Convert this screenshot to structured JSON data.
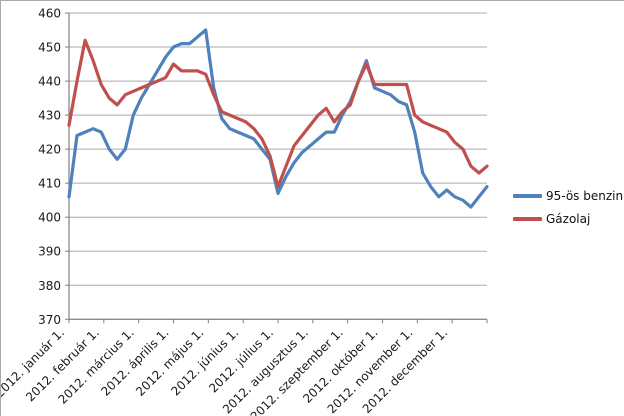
{
  "chart_data": {
    "type": "line",
    "title": "",
    "x_tick_labels": [
      "2012. január 1.",
      "2012. február 1.",
      "2012. március 1.",
      "2012. április 1.",
      "2012. május 1.",
      "2012. június 1.",
      "2012. július 1.",
      "2012. augusztus 1.",
      "2012. szeptember 1.",
      "2012. október 1.",
      "2012. november 1.",
      "2012. december 1."
    ],
    "y_tick_labels": [
      "370",
      "380",
      "390",
      "400",
      "410",
      "420",
      "430",
      "440",
      "450",
      "460"
    ],
    "ylim": [
      370,
      460
    ],
    "y_step": 10,
    "grid": true,
    "legend_position": "right",
    "x_frequency": "weekly",
    "series": [
      {
        "name": "95-ös benzin",
        "color": "#4F81BD",
        "values": [
          406,
          424,
          425,
          426,
          425,
          420,
          417,
          420,
          430,
          435,
          439,
          443,
          447,
          450,
          451,
          451,
          453,
          455,
          438,
          429,
          426,
          425,
          424,
          423,
          420,
          417,
          407,
          412,
          416,
          419,
          421,
          423,
          425,
          425,
          430,
          434,
          440,
          446,
          438,
          437,
          436,
          434,
          433,
          425,
          413,
          409,
          406,
          408,
          406,
          405,
          403,
          406,
          409
        ]
      },
      {
        "name": "Gázolaj",
        "color": "#C0504D",
        "values": [
          427,
          440,
          452,
          446,
          439,
          435,
          433,
          436,
          437,
          438,
          439,
          440,
          441,
          445,
          443,
          443,
          443,
          442,
          436,
          431,
          430,
          429,
          428,
          426,
          423,
          418,
          409,
          415,
          421,
          424,
          427,
          430,
          432,
          428,
          431,
          433,
          440,
          445,
          439,
          439,
          439,
          439,
          439,
          430,
          428,
          427,
          426,
          425,
          422,
          420,
          415,
          413,
          415
        ]
      }
    ]
  },
  "colors": {
    "background": "#FFFFFF",
    "gridline": "#ABABAB",
    "axis": "#808080",
    "text": "#1A1A1A"
  }
}
